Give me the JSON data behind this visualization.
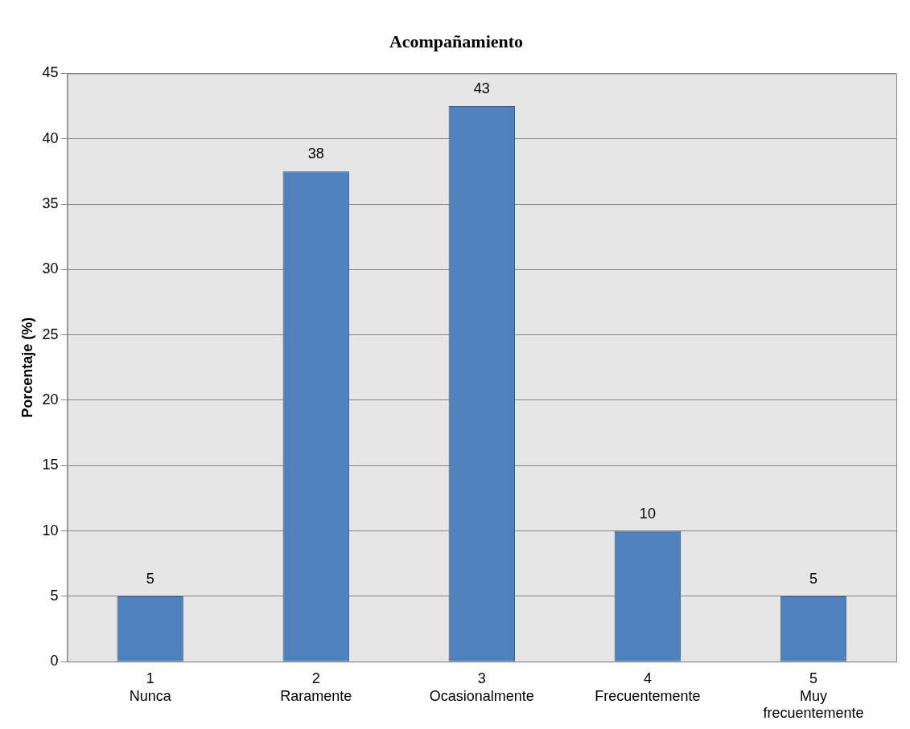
{
  "chart_data": {
    "type": "bar",
    "title": "Acompañamiento",
    "ylabel": "Porcentaje (%)",
    "categories": [
      "1\nNunca",
      "2\nRaramente",
      "3\nOcasionalmente",
      "4\nFrecuentemente",
      "5\nMuy\nfrecuentemente"
    ],
    "values": [
      5,
      37.5,
      42.5,
      10,
      5
    ],
    "value_labels": [
      "5",
      "38",
      "43",
      "10",
      "5"
    ],
    "color": "#4f81bd",
    "ylim": [
      0,
      45
    ],
    "yticks": [
      0,
      5,
      10,
      15,
      20,
      25,
      30,
      35,
      40,
      45
    ],
    "grid": "y",
    "legend": false
  }
}
